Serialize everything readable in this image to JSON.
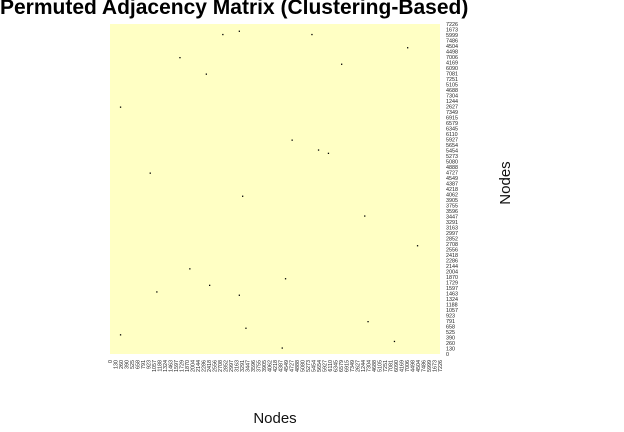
{
  "chart_data": {
    "type": "heatmap",
    "title": "Permuted Adjacency Matrix (Clustering-Based)",
    "xlabel": "Nodes",
    "ylabel": "Nodes",
    "background_color": "#ffffc4",
    "edge_color": "#000000",
    "tick_labels": [
      "0",
      "130",
      "260",
      "390",
      "525",
      "658",
      "791",
      "923",
      "1057",
      "1188",
      "1324",
      "1463",
      "1597",
      "1729",
      "1870",
      "2004",
      "2144",
      "2286",
      "2418",
      "2556",
      "2708",
      "2852",
      "2997",
      "3163",
      "3291",
      "3447",
      "3596",
      "3755",
      "3905",
      "4062",
      "4218",
      "4387",
      "4549",
      "4727",
      "4888",
      "5080",
      "5273",
      "5454",
      "5654",
      "5927",
      "6110",
      "6345",
      "6579",
      "6915",
      "7349",
      "2627",
      "1244",
      "7304",
      "4688",
      "5105",
      "7251",
      "7081",
      "6090",
      "4169",
      "7006",
      "4498",
      "4504",
      "7486",
      "5999",
      "1673",
      "7226"
    ],
    "edges": [
      {
        "x": 0.34,
        "y": 0.03
      },
      {
        "x": 0.39,
        "y": 0.02
      },
      {
        "x": 0.61,
        "y": 0.03
      },
      {
        "x": 0.21,
        "y": 0.1
      },
      {
        "x": 0.03,
        "y": 0.25
      },
      {
        "x": 0.29,
        "y": 0.15
      },
      {
        "x": 0.7,
        "y": 0.12
      },
      {
        "x": 0.9,
        "y": 0.07
      },
      {
        "x": 0.55,
        "y": 0.35
      },
      {
        "x": 0.63,
        "y": 0.38
      },
      {
        "x": 0.66,
        "y": 0.39
      },
      {
        "x": 0.12,
        "y": 0.45
      },
      {
        "x": 0.4,
        "y": 0.52
      },
      {
        "x": 0.77,
        "y": 0.58
      },
      {
        "x": 0.93,
        "y": 0.67
      },
      {
        "x": 0.24,
        "y": 0.74
      },
      {
        "x": 0.3,
        "y": 0.79
      },
      {
        "x": 0.53,
        "y": 0.77
      },
      {
        "x": 0.14,
        "y": 0.81
      },
      {
        "x": 0.39,
        "y": 0.82
      },
      {
        "x": 0.03,
        "y": 0.94
      },
      {
        "x": 0.41,
        "y": 0.92
      },
      {
        "x": 0.78,
        "y": 0.9
      },
      {
        "x": 0.86,
        "y": 0.96
      },
      {
        "x": 0.52,
        "y": 0.98
      }
    ]
  }
}
